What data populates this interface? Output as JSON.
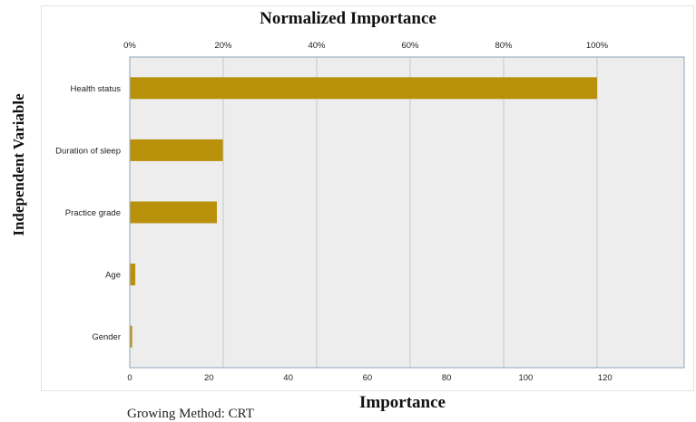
{
  "chart_data": {
    "type": "bar",
    "orientation": "horizontal",
    "title": "Normalized Importance",
    "xlabel": "Importance",
    "ylabel": "Independent Variable",
    "categories": [
      "Health status",
      "Duration of sleep",
      "Practice grade",
      "Age",
      "Gender"
    ],
    "values": [
      118,
      23.5,
      22,
      1.4,
      0.6
    ],
    "xlim": [
      0,
      140
    ],
    "x_ticks": [
      "0",
      "20",
      "40",
      "60",
      "80",
      "100",
      "120"
    ],
    "x_tick_values": [
      0,
      20,
      40,
      60,
      80,
      100,
      120
    ],
    "top_ticks": [
      "0%",
      "20%",
      "40%",
      "60%",
      "80%",
      "100%"
    ],
    "top_tick_values": [
      0,
      23.6,
      47.2,
      70.8,
      94.4,
      118
    ],
    "grid": true,
    "colors": {
      "bar": "#b8900a",
      "plot_bg": "#ededed",
      "plot_border": "#9fb2c4",
      "grid": "#c8c8c8"
    }
  },
  "footer_text": "Growing Method: CRT"
}
